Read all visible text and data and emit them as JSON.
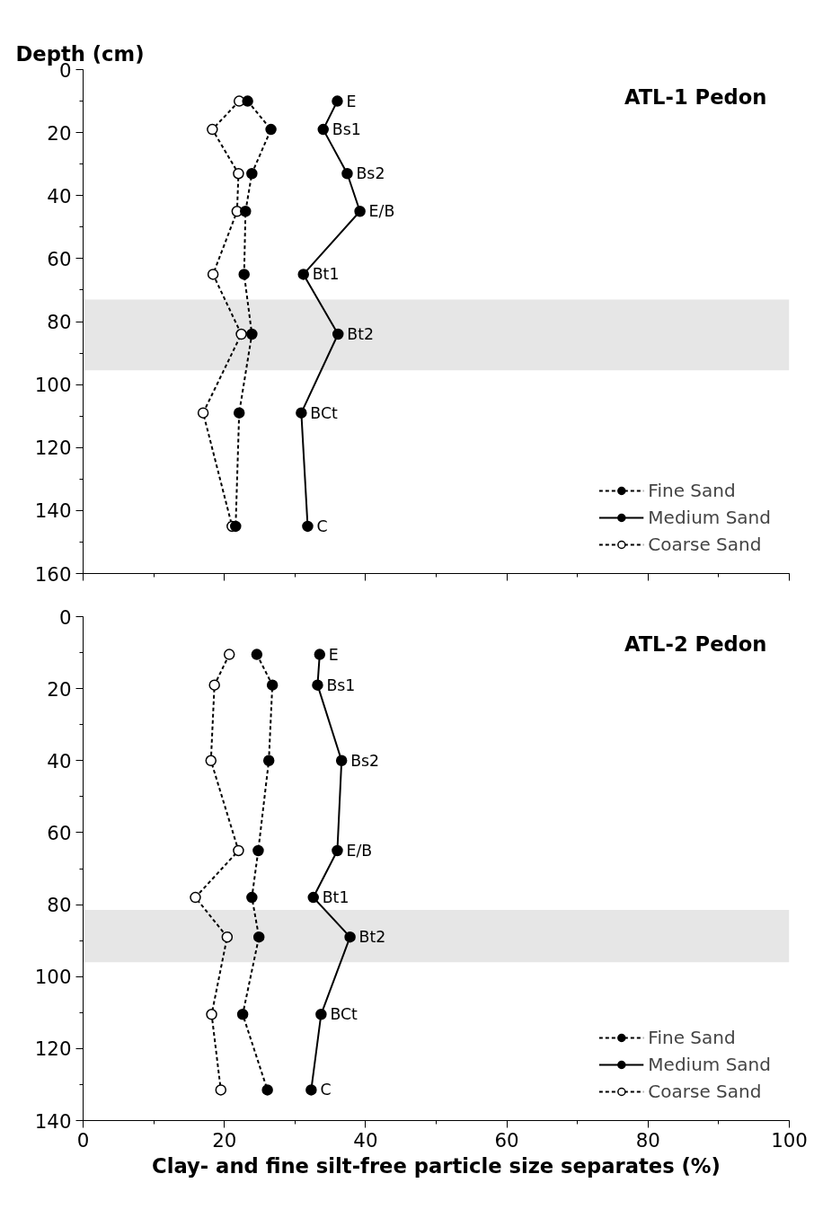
{
  "chart_data": [
    {
      "type": "line",
      "title": "ATL-1 Pedon",
      "ylabel": "Depth (cm)",
      "xlim": [
        0,
        100
      ],
      "xticks": [
        0,
        20,
        40,
        60,
        80,
        100
      ],
      "ylim": [
        160,
        0
      ],
      "yticks": [
        0,
        20,
        40,
        60,
        80,
        100,
        120,
        140,
        160
      ],
      "tick_labels": "y",
      "grid": false,
      "legend": "bottom right",
      "marker": "circle",
      "series": [
        {
          "name": "Fine Sand",
          "color": "#000000",
          "line_style": "dashed",
          "x": [
            23.3,
            26.6,
            23.9,
            23.0,
            22.8,
            23.9,
            22.1,
            21.6
          ],
          "values": [
            10,
            19,
            33,
            45,
            65,
            84,
            109,
            145
          ]
        },
        {
          "name": "Medium Sand",
          "color": "#000000",
          "line_style": "solid",
          "x": [
            36.0,
            34.0,
            37.4,
            39.2,
            31.2,
            36.1,
            30.9,
            31.8
          ],
          "values": [
            10,
            19,
            33,
            45,
            65,
            84,
            109,
            145
          ]
        },
        {
          "name": "Coarse Sand",
          "color": "#000000",
          "line_style": "dashed",
          "marker": "circle_open",
          "x": [
            22.1,
            18.3,
            22.0,
            21.8,
            18.4,
            22.4,
            17.0,
            21.1
          ],
          "values": [
            10,
            19,
            33,
            45,
            65,
            84,
            109,
            145
          ]
        }
      ],
      "bands": [
        {
          "axis": "y",
          "from": 73,
          "to": 95.5,
          "color": "#e6e6e6"
        }
      ],
      "annotations": [
        {
          "text": "E",
          "x": 36.0,
          "y": 10
        },
        {
          "text": "Bs1",
          "x": 34.0,
          "y": 19
        },
        {
          "text": "Bs2",
          "x": 37.4,
          "y": 33
        },
        {
          "text": "E/B",
          "x": 39.2,
          "y": 45
        },
        {
          "text": "Bt1",
          "x": 31.2,
          "y": 65
        },
        {
          "text": "Bt2",
          "x": 36.1,
          "y": 84
        },
        {
          "text": "BCt",
          "x": 30.9,
          "y": 109
        },
        {
          "text": "C",
          "x": 31.8,
          "y": 145
        }
      ]
    },
    {
      "type": "line",
      "title": "ATL-2 Pedon",
      "xlabel": "Clay- and fine silt-free particle size separates (%)",
      "xlim": [
        0,
        100
      ],
      "xticks": [
        0,
        20,
        40,
        60,
        80,
        100
      ],
      "ylim": [
        140,
        0
      ],
      "yticks": [
        0,
        20,
        40,
        60,
        80,
        100,
        120,
        140
      ],
      "grid": false,
      "legend": "bottom right",
      "marker": "circle",
      "series": [
        {
          "name": "Fine Sand",
          "color": "#000000",
          "line_style": "dashed",
          "x": [
            24.6,
            26.8,
            26.3,
            24.8,
            23.9,
            24.9,
            22.6,
            26.1
          ],
          "values": [
            10.5,
            19,
            40,
            65,
            78,
            89,
            110.5,
            131.5
          ]
        },
        {
          "name": "Medium Sand",
          "color": "#000000",
          "line_style": "solid",
          "x": [
            33.5,
            33.2,
            36.6,
            36.0,
            32.6,
            37.8,
            33.7,
            32.3
          ],
          "values": [
            10.5,
            19,
            40,
            65,
            78,
            89,
            110.5,
            131.5
          ]
        },
        {
          "name": "Coarse Sand",
          "color": "#000000",
          "line_style": "dashed",
          "marker": "circle_open",
          "x": [
            20.7,
            18.6,
            18.1,
            22.0,
            15.9,
            20.4,
            18.2,
            19.5
          ],
          "values": [
            10.5,
            19,
            40,
            65,
            78,
            89,
            110.5,
            131.5
          ]
        }
      ],
      "bands": [
        {
          "axis": "y",
          "from": 81.5,
          "to": 96,
          "color": "#e6e6e6"
        }
      ],
      "annotations": [
        {
          "text": "E",
          "x": 33.5,
          "y": 10.5
        },
        {
          "text": "Bs1",
          "x": 33.2,
          "y": 19
        },
        {
          "text": "Bs2",
          "x": 36.6,
          "y": 40
        },
        {
          "text": "E/B",
          "x": 36.0,
          "y": 65
        },
        {
          "text": "Bt1",
          "x": 32.6,
          "y": 78
        },
        {
          "text": "Bt2",
          "x": 37.8,
          "y": 89
        },
        {
          "text": "BCt",
          "x": 33.7,
          "y": 110.5
        },
        {
          "text": "C",
          "x": 32.3,
          "y": 131.5
        }
      ]
    }
  ]
}
